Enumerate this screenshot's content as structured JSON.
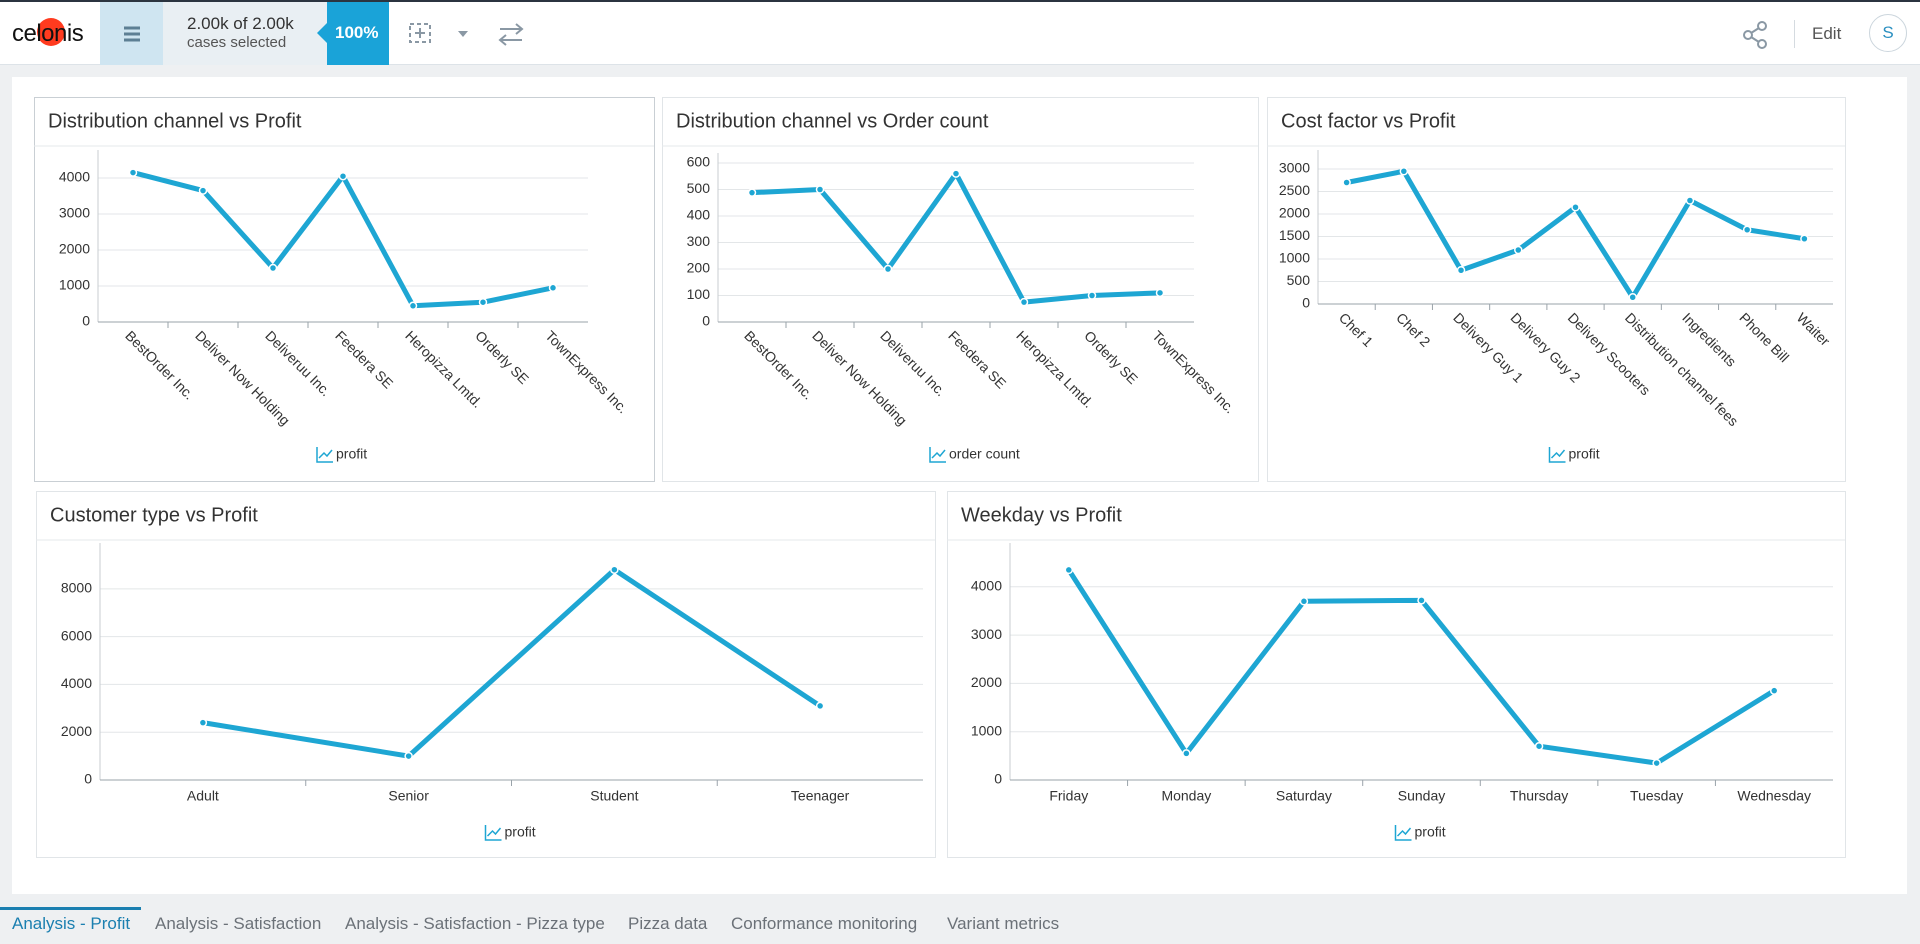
{
  "header": {
    "logo": "celonis",
    "cases_count": "2.00k of 2.00k",
    "cases_label": "cases selected",
    "percent": "100%",
    "edit": "Edit",
    "user": "S"
  },
  "chart_data": [
    {
      "type": "line",
      "title": "Distribution channel vs Profit",
      "categories": [
        "BestOrder Inc.",
        "Deliver Now Holding",
        "Deliveruu Inc.",
        "Feedera SE",
        "Heropizza Lmtd.",
        "Orderly SE",
        "TownExpress Inc."
      ],
      "series": [
        {
          "name": "profit",
          "color": "#1ea6d3",
          "values": [
            4150,
            3650,
            1500,
            4050,
            450,
            550,
            950
          ]
        }
      ],
      "ylim": [
        0,
        4500
      ],
      "yticks": [
        0,
        1000,
        2000,
        3000,
        4000
      ],
      "grid": true
    },
    {
      "type": "line",
      "title": "Distribution channel vs Order count",
      "categories": [
        "BestOrder Inc.",
        "Deliver Now Holding",
        "Deliveruu Inc.",
        "Feedera SE",
        "Heropizza Lmtd.",
        "Orderly SE",
        "TownExpress Inc."
      ],
      "series": [
        {
          "name": "order count",
          "color": "#1ea6d3",
          "values": [
            488,
            500,
            200,
            560,
            75,
            100,
            110
          ]
        }
      ],
      "ylim": [
        0,
        600
      ],
      "yticks": [
        0,
        100,
        200,
        300,
        400,
        500,
        600
      ],
      "grid": true
    },
    {
      "type": "line",
      "title": "Cost factor vs Profit",
      "categories": [
        "Chef 1",
        "Chef 2",
        "Delivery Guy 1",
        "Delivery Guy 2",
        "Delivery Scooters",
        "Distribution channel fees",
        "Ingredients",
        "Phone Bill",
        "Waiter"
      ],
      "series": [
        {
          "name": "profit",
          "color": "#1ea6d3",
          "values": [
            2700,
            2950,
            750,
            1200,
            2150,
            150,
            2300,
            1650,
            1450
          ]
        }
      ],
      "ylim": [
        0,
        3200
      ],
      "yticks": [
        0,
        500,
        1000,
        1500,
        2000,
        2500,
        3000
      ],
      "grid": true
    },
    {
      "type": "line",
      "title": "Customer type vs Profit",
      "categories": [
        "Adult",
        "Senior",
        "Student",
        "Teenager"
      ],
      "series": [
        {
          "name": "profit",
          "color": "#1ea6d3",
          "values": [
            2400,
            1000,
            8800,
            3100
          ]
        }
      ],
      "ylim": [
        0,
        9500
      ],
      "yticks": [
        0,
        2000,
        4000,
        6000,
        8000
      ],
      "grid": true
    },
    {
      "type": "line",
      "title": "Weekday vs Profit",
      "categories": [
        "Friday",
        "Monday",
        "Saturday",
        "Sunday",
        "Thursday",
        "Tuesday",
        "Wednesday"
      ],
      "series": [
        {
          "name": "profit",
          "color": "#1ea6d3",
          "values": [
            4350,
            550,
            3700,
            3720,
            700,
            350,
            1850
          ]
        }
      ],
      "ylim": [
        0,
        4700
      ],
      "yticks": [
        0,
        1000,
        2000,
        3000,
        4000
      ],
      "grid": true
    }
  ],
  "tabs": [
    "Analysis - Profit",
    "Analysis - Satisfaction",
    "Analysis - Satisfaction - Pizza type",
    "Pizza data",
    "Conformance monitoring",
    "Variant metrics"
  ]
}
